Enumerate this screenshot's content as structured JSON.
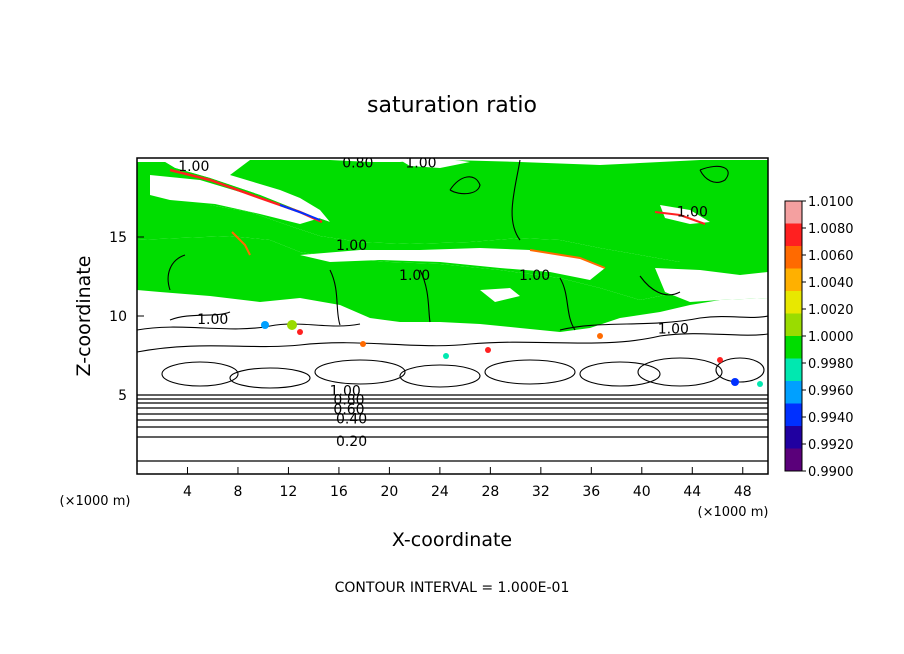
{
  "chart_data": {
    "type": "heatmap",
    "title": "saturation ratio",
    "xlabel": "X-coordinate",
    "ylabel": "Z-coordinate",
    "x_unit": "(×1000 m)",
    "y_unit": "(×1000 m)",
    "xlim": [
      0,
      50
    ],
    "ylim": [
      0,
      20
    ],
    "x_ticks": [
      4,
      8,
      12,
      16,
      20,
      24,
      28,
      32,
      36,
      40,
      44,
      48
    ],
    "y_ticks": [
      5,
      10,
      15
    ],
    "footer": "CONTOUR INTERVAL = 1.000E-01",
    "colorbar": {
      "levels": [
        "1.0100",
        "1.0080",
        "1.0060",
        "1.0040",
        "1.0020",
        "1.0000",
        "0.9980",
        "0.9960",
        "0.9940",
        "0.9920",
        "0.9900"
      ],
      "colors": [
        "#f4a0a0",
        "#ff2020",
        "#ff6a00",
        "#ffb000",
        "#e8e800",
        "#9adc00",
        "#00dd00",
        "#00e8b0",
        "#00a0ff",
        "#0030ff",
        "#2000a0",
        "#5a007a"
      ]
    },
    "contour_labels": [
      {
        "text": "1.00",
        "x": 4.5,
        "z": 19.5
      },
      {
        "text": "0.80",
        "x": 17.5,
        "z": 19.7
      },
      {
        "text": "1.00",
        "x": 22.5,
        "z": 19.7
      },
      {
        "text": "1.00",
        "x": 44.0,
        "z": 16.6
      },
      {
        "text": "1.00",
        "x": 17.0,
        "z": 14.5
      },
      {
        "text": "1.00",
        "x": 22.0,
        "z": 12.6
      },
      {
        "text": "1.00",
        "x": 31.5,
        "z": 12.6
      },
      {
        "text": "1.00",
        "x": 6.0,
        "z": 9.8
      },
      {
        "text": "1.00",
        "x": 42.5,
        "z": 9.2
      },
      {
        "text": "1.00",
        "x": 16.5,
        "z": 5.3
      },
      {
        "text": "0.80",
        "x": 16.8,
        "z": 4.7
      },
      {
        "text": "0.60",
        "x": 16.8,
        "z": 4.1
      },
      {
        "text": "0.40",
        "x": 17.0,
        "z": 3.5
      },
      {
        "text": "0.20",
        "x": 17.0,
        "z": 2.1
      }
    ]
  }
}
